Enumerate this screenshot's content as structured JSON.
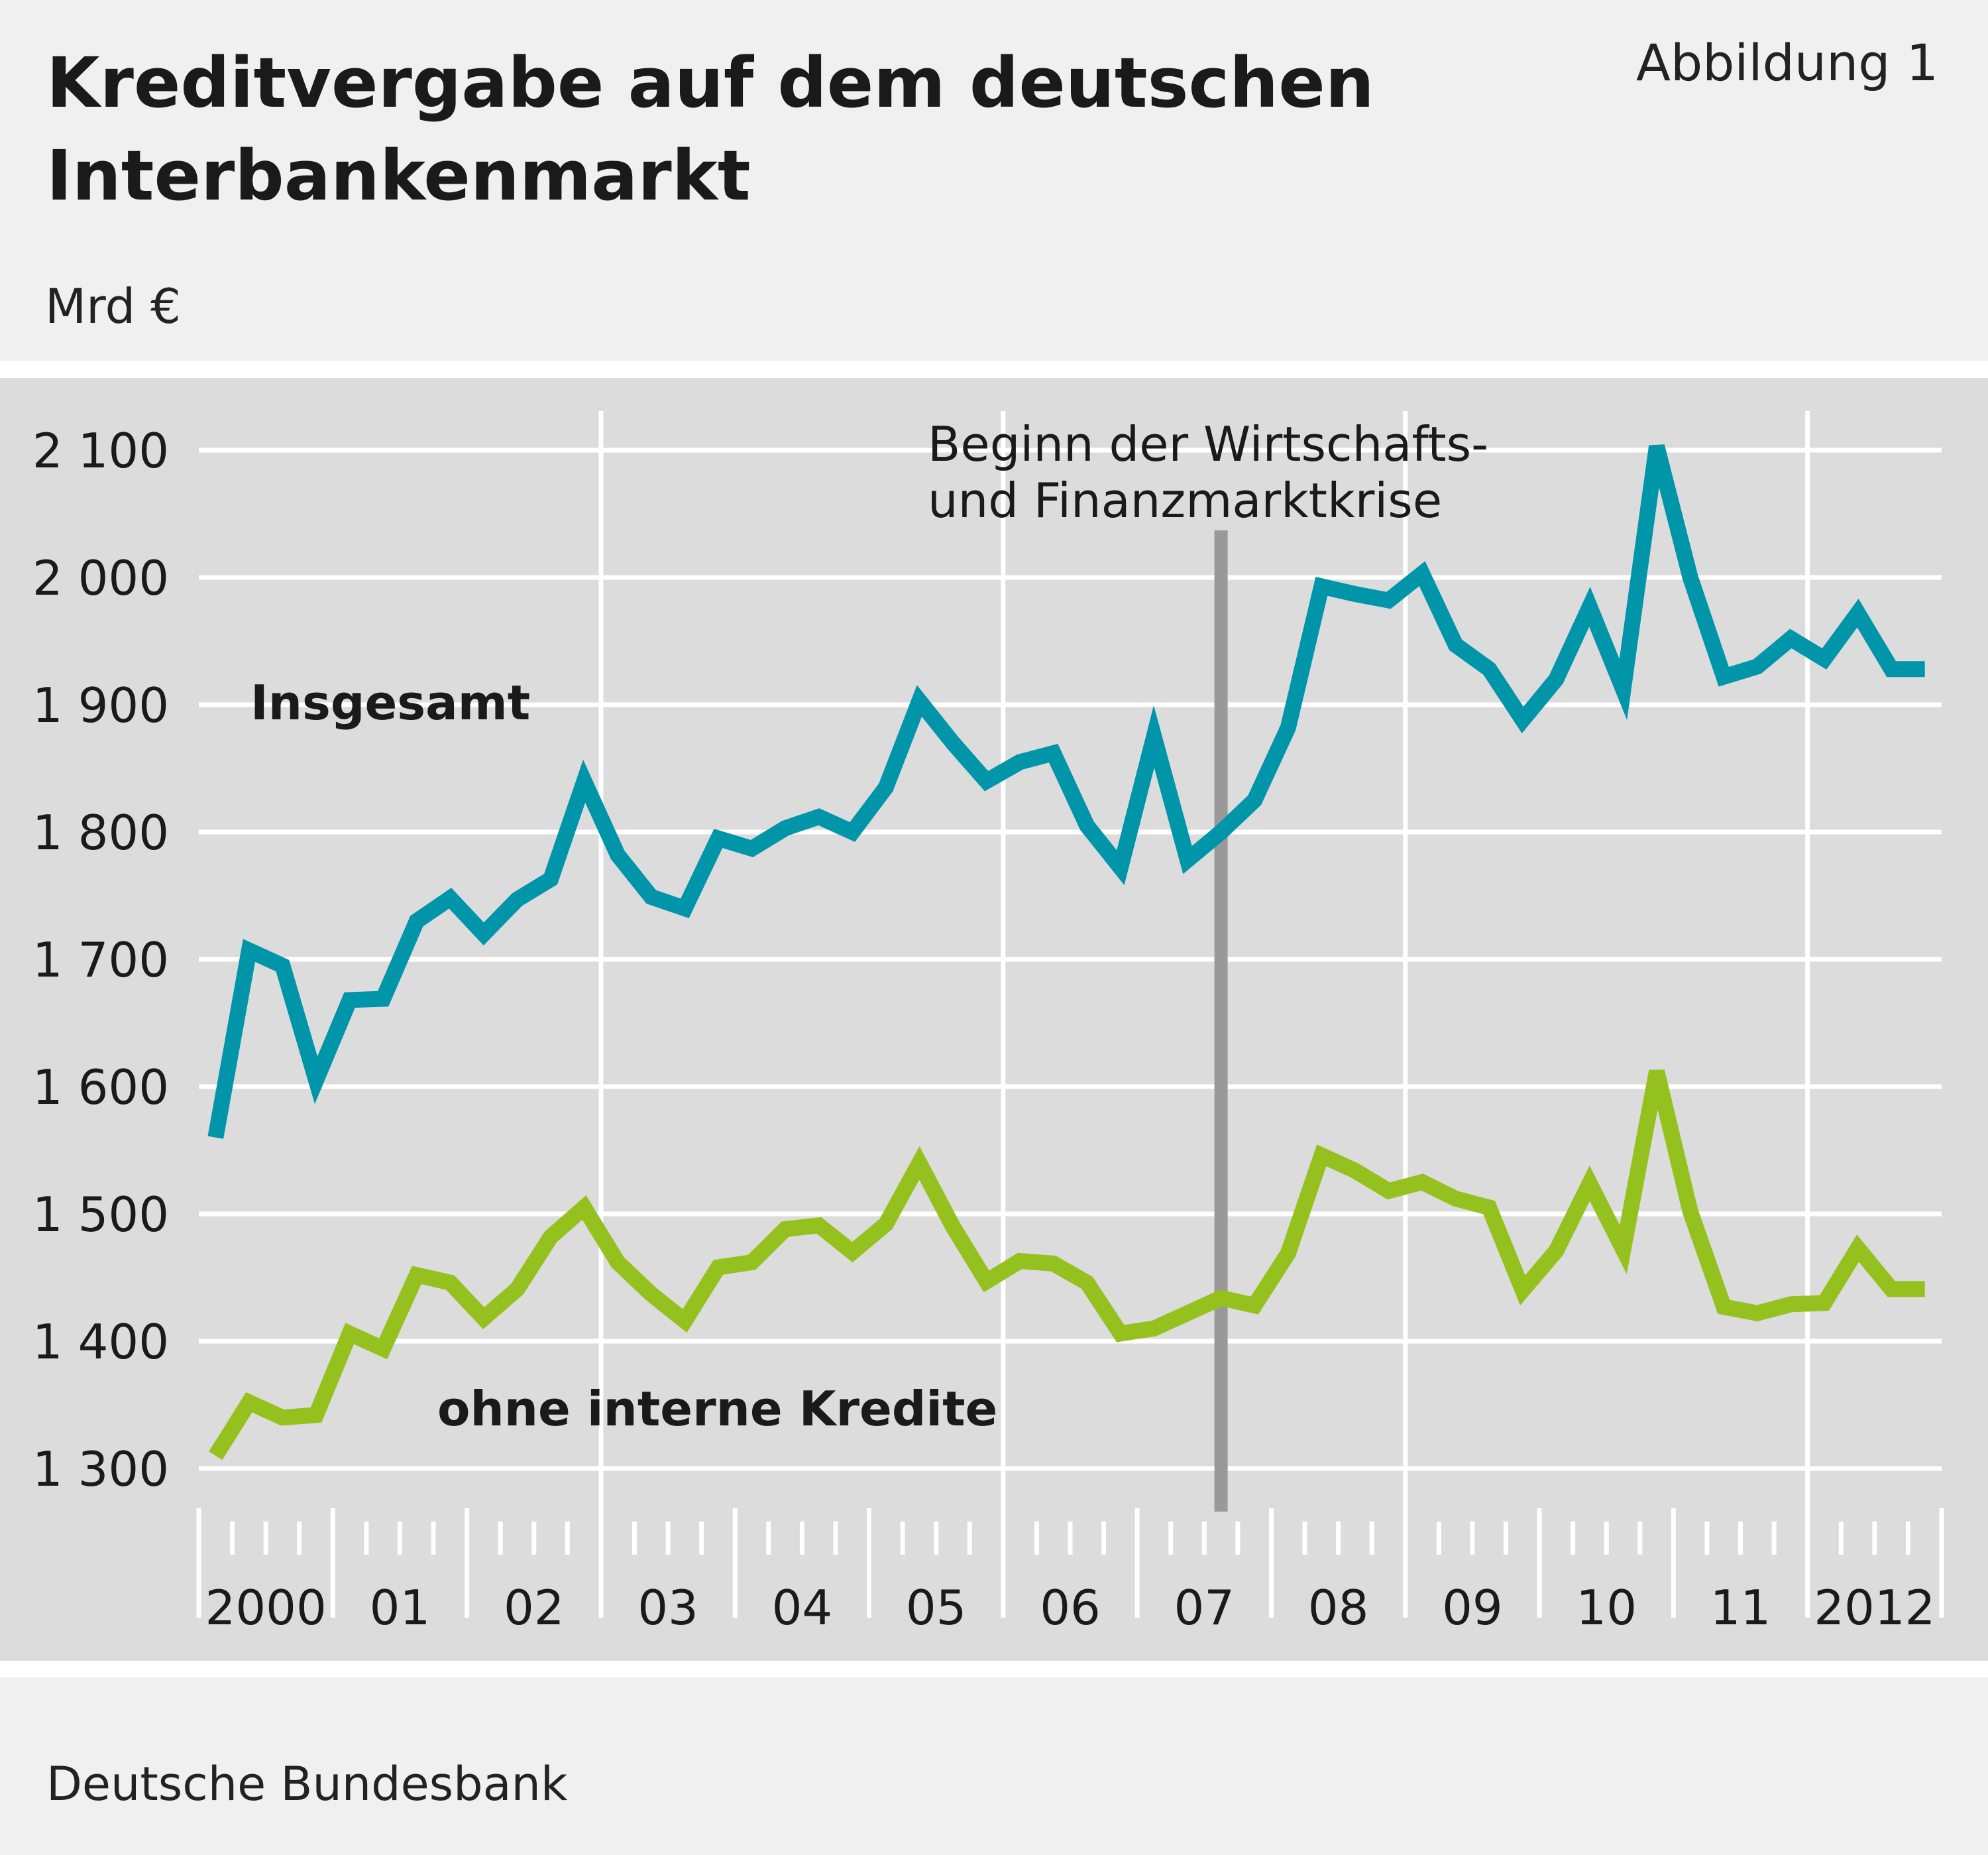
{
  "header": {
    "title": "Kreditvergabe auf dem deutschen Interbankenmarkt",
    "figure_number": "Abbildung 1",
    "unit": "Mrd €"
  },
  "footer": {
    "source": "Deutsche Bundesbank"
  },
  "colors": {
    "insgesamt": "#0095a8",
    "ohne_interne": "#95c11f",
    "plot_bg": "#dcdcdc",
    "grid": "#ffffff",
    "marker": "#999999"
  },
  "chart_data": {
    "type": "line",
    "title": "Kreditvergabe auf dem deutschen Interbankenmarkt",
    "ylabel": "Mrd €",
    "ylim": [
      1250,
      2125
    ],
    "yticks": [
      1300,
      1400,
      1500,
      1600,
      1700,
      1800,
      1900,
      2000,
      2100
    ],
    "ytick_labels": [
      "1 300",
      "1 400",
      "1 500",
      "1 600",
      "1 700",
      "1 800",
      "1 900",
      "2 000",
      "2 100"
    ],
    "xlim": [
      2000.0,
      2013.0
    ],
    "x_labels": [
      "2000",
      "01",
      "02",
      "03",
      "04",
      "05",
      "06",
      "07",
      "08",
      "09",
      "10",
      "11",
      "2012"
    ],
    "grid": true,
    "annotation": {
      "x": 2007.625,
      "lines": [
        "Beginn der Wirtschafts-",
        "und Finanzmarktkrise"
      ]
    },
    "x": [
      2000.125,
      2000.375,
      2000.625,
      2000.875,
      2001.125,
      2001.375,
      2001.625,
      2001.875,
      2002.125,
      2002.375,
      2002.625,
      2002.875,
      2003.125,
      2003.375,
      2003.625,
      2003.875,
      2004.125,
      2004.375,
      2004.625,
      2004.875,
      2005.125,
      2005.375,
      2005.625,
      2005.875,
      2006.125,
      2006.375,
      2006.625,
      2006.875,
      2007.125,
      2007.375,
      2007.625,
      2007.875,
      2008.125,
      2008.375,
      2008.625,
      2008.875,
      2009.125,
      2009.375,
      2009.625,
      2009.875,
      2010.125,
      2010.375,
      2010.625,
      2010.875,
      2011.125,
      2011.375,
      2011.625,
      2011.875,
      2012.125,
      2012.375,
      2012.625,
      2012.875
    ],
    "series": [
      {
        "name": "Insgesamt",
        "values": [
          1560,
          1707,
          1695,
          1605,
          1668,
          1669,
          1730,
          1748,
          1720,
          1747,
          1763,
          1840,
          1782,
          1749,
          1740,
          1795,
          1787,
          1803,
          1812,
          1800,
          1835,
          1903,
          1870,
          1840,
          1855,
          1862,
          1805,
          1772,
          1875,
          1778,
          1800,
          1825,
          1882,
          1993,
          1987,
          1982,
          2003,
          1947,
          1928,
          1888,
          1920,
          1977,
          1912,
          2103,
          2000,
          1922,
          1930,
          1952,
          1936,
          1972,
          1928,
          1928
        ],
        "color": "#0095a8"
      },
      {
        "name": "ohne interne Kredite",
        "values": [
          1310,
          1352,
          1340,
          1342,
          1406,
          1394,
          1452,
          1446,
          1418,
          1441,
          1482,
          1505,
          1462,
          1437,
          1416,
          1458,
          1462,
          1488,
          1491,
          1470,
          1492,
          1540,
          1490,
          1447,
          1463,
          1461,
          1446,
          1406,
          1410,
          1422,
          1434,
          1428,
          1469,
          1546,
          1534,
          1518,
          1525,
          1512,
          1505,
          1440,
          1471,
          1524,
          1472,
          1612,
          1502,
          1427,
          1422,
          1429,
          1430,
          1473,
          1441,
          1441
        ]
      }
    ]
  }
}
